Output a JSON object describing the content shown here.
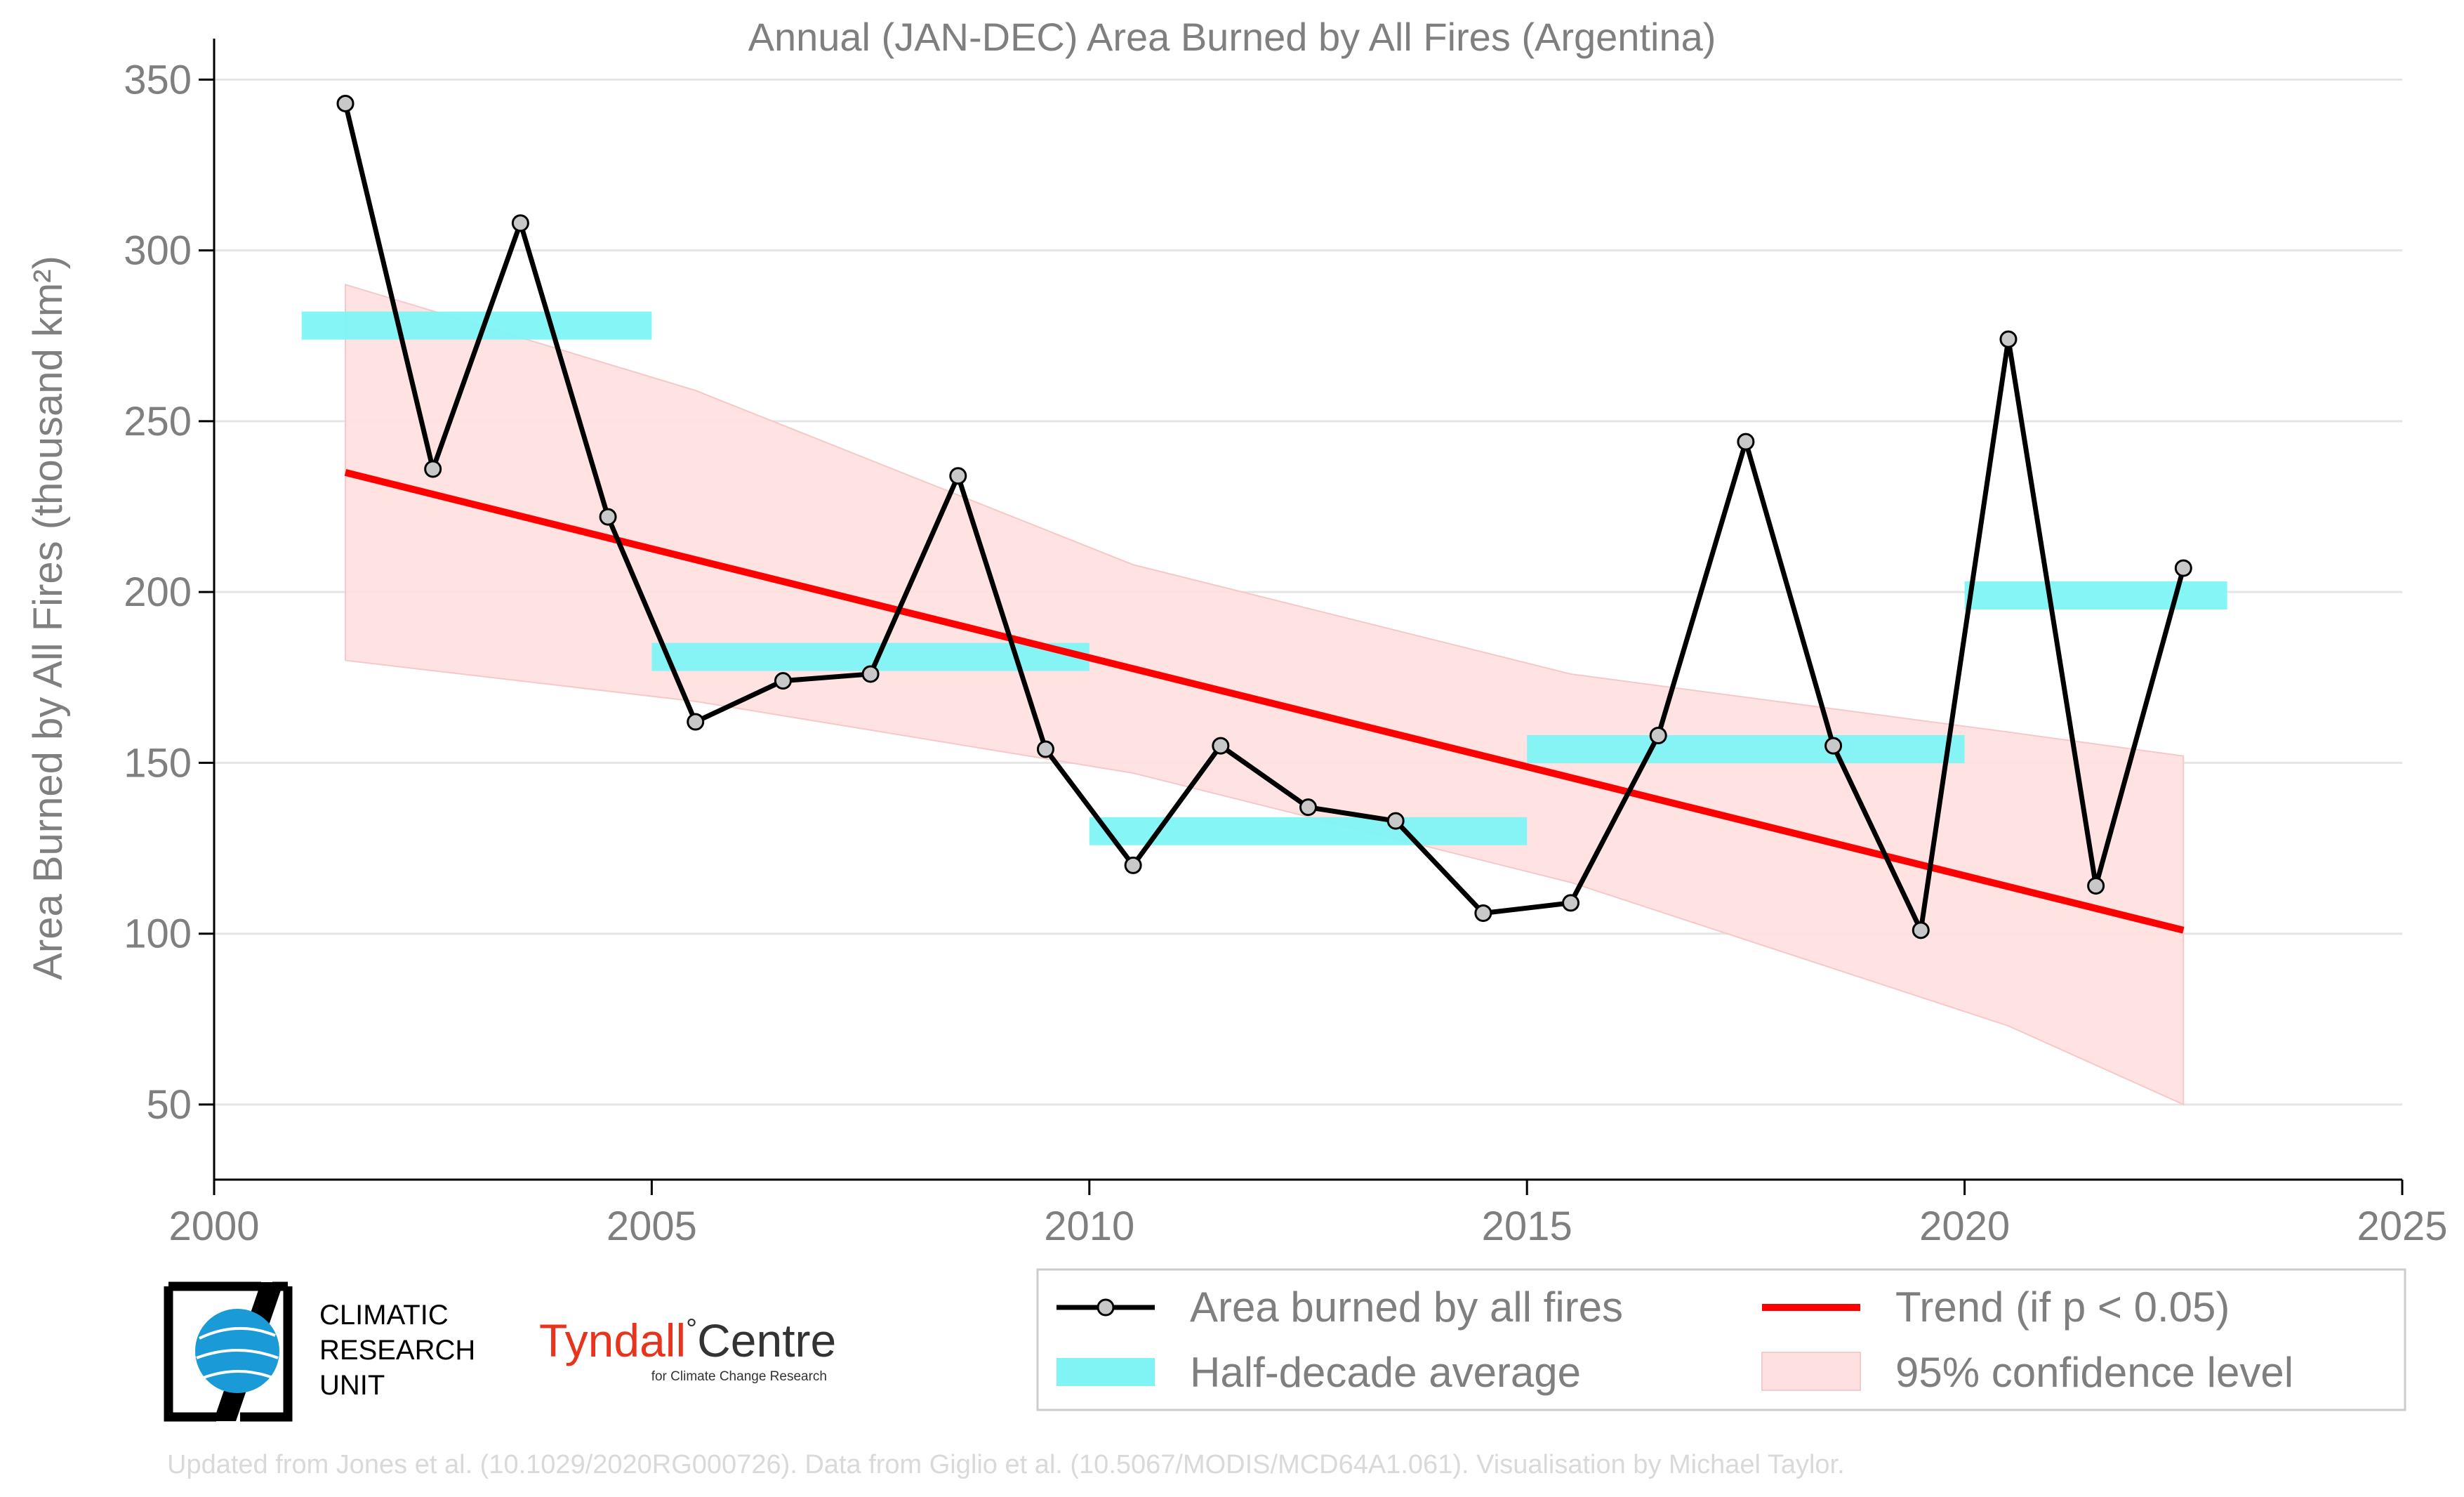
{
  "chart_data": {
    "type": "line",
    "title": "Annual (JAN-DEC) Area Burned by All Fires (Argentina)",
    "ylabel": "Area Burned by All Fires (thousand km²)",
    "xlabel": "",
    "xlim": [
      2000,
      2025
    ],
    "ylim": [
      28,
      362
    ],
    "x_ticks": [
      2000,
      2005,
      2010,
      2015,
      2020,
      2025
    ],
    "y_ticks": [
      50,
      100,
      150,
      200,
      250,
      300,
      350
    ],
    "grid": "horizontal",
    "legend_position": "bottom-right",
    "series": [
      {
        "name": "Area burned by all fires",
        "color": "#000000",
        "marker_fill": "#c8c8c8",
        "x": [
          2001.5,
          2002.5,
          2003.5,
          2004.5,
          2005.5,
          2006.5,
          2007.5,
          2008.5,
          2009.5,
          2010.5,
          2011.5,
          2012.5,
          2013.5,
          2014.5,
          2015.5,
          2016.5,
          2017.5,
          2018.5,
          2019.5,
          2020.5,
          2021.5,
          2022.5
        ],
        "values": [
          343,
          236,
          308,
          222,
          162,
          174,
          176,
          234,
          154,
          120,
          155,
          137,
          133,
          106,
          109,
          158,
          244,
          155,
          101,
          274,
          114,
          207
        ]
      },
      {
        "name": "Half-decade average",
        "color": "#80f4f4",
        "segments": [
          {
            "x_start": 2001,
            "x_end": 2005,
            "value": 278
          },
          {
            "x_start": 2005,
            "x_end": 2010,
            "value": 181
          },
          {
            "x_start": 2010,
            "x_end": 2015,
            "value": 130
          },
          {
            "x_start": 2015,
            "x_end": 2020,
            "value": 154
          },
          {
            "x_start": 2020,
            "x_end": 2023,
            "value": 199
          }
        ]
      },
      {
        "name": "Trend (if p < 0.05)",
        "color": "#ff0000",
        "x": [
          2001.5,
          2022.5
        ],
        "values": [
          235,
          101
        ]
      },
      {
        "name": "95% confidence level",
        "color": "#ffe0e0",
        "x": [
          2001.5,
          2005.5,
          2010.5,
          2015.5,
          2020.5,
          2022.5
        ],
        "upper": [
          290,
          259,
          208,
          176,
          159,
          152
        ],
        "lower": [
          180,
          168,
          147,
          115,
          73,
          50
        ]
      }
    ]
  },
  "logos": {
    "cru": [
      "CLIMATIC",
      "RESEARCH",
      "UNIT"
    ],
    "tyndall_name": "Tyndall",
    "tyndall_degree": "°",
    "tyndall_centre": "Centre",
    "tyndall_subtitle": "for Climate Change Research"
  },
  "footer": "Updated from Jones et al. (10.1029/2020RG000726). Data from Giglio et al. (10.5067/MODIS/MCD64A1.061). Visualisation by Michael Taylor."
}
